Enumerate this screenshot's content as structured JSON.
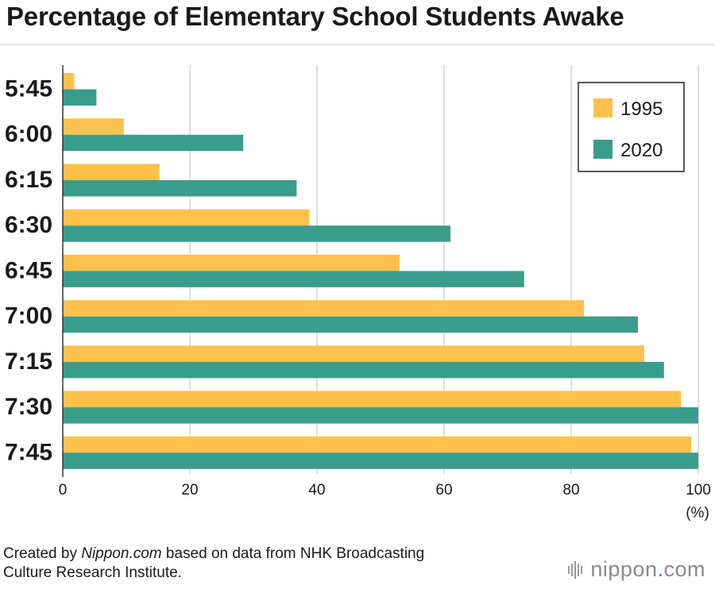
{
  "title": "Percentage of Elementary School Students Awake",
  "footer": {
    "prefix": "Created by ",
    "source_name": "Nippon.com",
    "middle": " based on data from NHK Broadcasting",
    "line2": "Culture Research Institute."
  },
  "brand": {
    "name": "nippon",
    "dot": ".",
    "suffix": "com",
    "icon": "sound-wave-icon"
  },
  "chart_data": {
    "type": "bar",
    "orientation": "horizontal",
    "categories": [
      "5:45",
      "6:00",
      "6:15",
      "6:30",
      "6:45",
      "7:00",
      "7:15",
      "7:30",
      "7:45"
    ],
    "series": [
      {
        "name": "1995",
        "color": "#fec14b",
        "values": [
          1.8,
          9.6,
          15.2,
          38.8,
          53.0,
          82.0,
          91.5,
          97.3,
          98.9
        ]
      },
      {
        "name": "2020",
        "color": "#3a9d8b",
        "values": [
          5.3,
          28.4,
          36.8,
          61.0,
          72.6,
          90.5,
          94.6,
          100,
          100
        ]
      }
    ],
    "x_ticks": [
      0,
      20,
      40,
      60,
      80,
      100
    ],
    "xlim": [
      0,
      100
    ],
    "x_unit": "(%)",
    "grid": true,
    "legend_position": "top-right"
  }
}
